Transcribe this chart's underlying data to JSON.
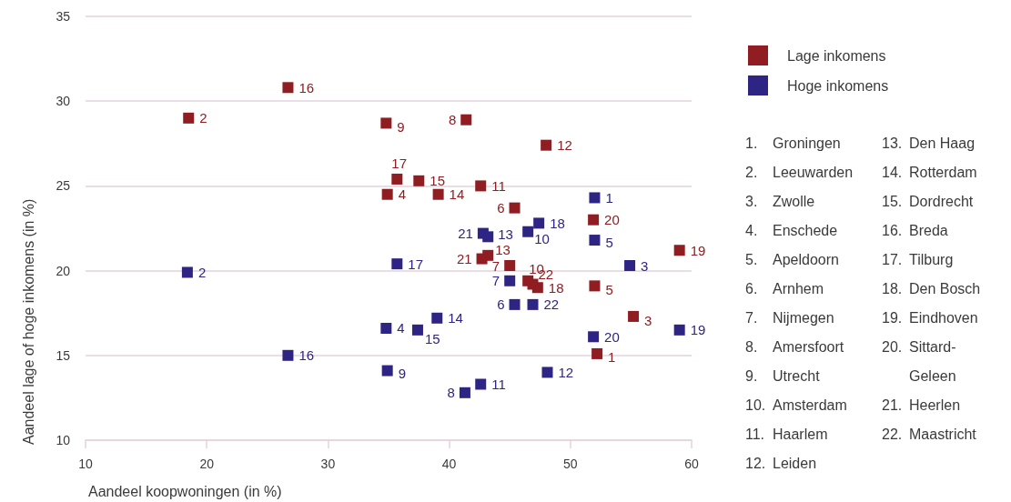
{
  "chart_data": {
    "type": "scatter",
    "xlabel": "Aandeel koopwoningen (in %)",
    "ylabel": "Aandeel lage of hoge inkomens (in %)",
    "xlim": [
      10,
      60
    ],
    "xticks": [
      10,
      20,
      30,
      40,
      50,
      60
    ],
    "ylim": [
      10,
      35
    ],
    "yticks": [
      10,
      15,
      20,
      25,
      30,
      35
    ],
    "grid": "y",
    "legend": "top right",
    "marker": "square",
    "series": [
      {
        "name": "Lage inkomens",
        "color": "#8f1d21",
        "x": [
          52.2,
          18.5,
          55.2,
          34.9,
          52.0,
          45.4,
          45.0,
          41.4,
          34.8,
          46.5,
          42.6,
          48.0,
          43.2,
          39.1,
          37.5,
          26.7,
          35.7,
          47.3,
          59.0,
          51.9,
          42.7,
          46.9
        ],
        "values": [
          15.1,
          29.0,
          17.3,
          24.5,
          19.1,
          23.7,
          20.3,
          28.9,
          28.7,
          19.4,
          25.0,
          27.4,
          20.9,
          24.5,
          25.3,
          30.8,
          25.4,
          19.0,
          21.2,
          23.0,
          20.7,
          19.2
        ]
      },
      {
        "name": "Hoge inkomens",
        "color": "#2e2484",
        "x": [
          52.0,
          18.4,
          54.9,
          34.8,
          52.0,
          45.4,
          45.0,
          41.3,
          34.9,
          46.5,
          42.6,
          48.1,
          43.2,
          39.0,
          37.4,
          26.7,
          35.7,
          47.4,
          59.0,
          51.9,
          42.8,
          46.9
        ],
        "values": [
          24.3,
          19.9,
          20.3,
          16.6,
          21.8,
          18.0,
          19.4,
          12.8,
          14.1,
          22.3,
          13.3,
          14.0,
          22.0,
          17.2,
          16.5,
          15.0,
          20.4,
          22.8,
          16.5,
          16.1,
          22.2,
          18.0
        ]
      }
    ],
    "annotations": [
      {
        "text": "1",
        "x": 52.2,
        "y": 15.1
      },
      {
        "text": "2",
        "x": 18.5,
        "y": 29.0
      },
      {
        "text": "3",
        "x": 55.2,
        "y": 17.3
      },
      {
        "text": "4",
        "x": 34.9,
        "y": 24.5
      },
      {
        "text": "5",
        "x": 52.0,
        "y": 19.1
      },
      {
        "text": "6",
        "x": 45.4,
        "y": 23.7
      },
      {
        "text": "7",
        "x": 45.0,
        "y": 20.3
      },
      {
        "text": "8",
        "x": 41.4,
        "y": 28.9
      },
      {
        "text": "9",
        "x": 34.8,
        "y": 28.7
      },
      {
        "text": "10",
        "x": 46.5,
        "y": 19.4
      },
      {
        "text": "11",
        "x": 42.6,
        "y": 25.0
      },
      {
        "text": "12",
        "x": 48.0,
        "y": 27.4
      },
      {
        "text": "13",
        "x": 43.2,
        "y": 20.9
      },
      {
        "text": "14",
        "x": 39.1,
        "y": 24.5
      },
      {
        "text": "15",
        "x": 37.5,
        "y": 25.3
      },
      {
        "text": "16",
        "x": 26.7,
        "y": 30.8
      },
      {
        "text": "17",
        "x": 35.7,
        "y": 25.4
      },
      {
        "text": "18",
        "x": 47.3,
        "y": 19.0
      },
      {
        "text": "19",
        "x": 59.0,
        "y": 21.2
      },
      {
        "text": "20",
        "x": 51.9,
        "y": 23.0
      },
      {
        "text": "21",
        "x": 42.7,
        "y": 20.7
      },
      {
        "text": "22",
        "x": 46.9,
        "y": 19.2
      },
      {
        "text": "1",
        "x": 52.0,
        "y": 24.3
      },
      {
        "text": "2",
        "x": 18.4,
        "y": 19.9
      },
      {
        "text": "3",
        "x": 54.9,
        "y": 20.3
      },
      {
        "text": "4",
        "x": 34.8,
        "y": 16.6
      },
      {
        "text": "5",
        "x": 52.0,
        "y": 21.8
      },
      {
        "text": "6",
        "x": 45.4,
        "y": 18.0
      },
      {
        "text": "7",
        "x": 45.0,
        "y": 19.4
      },
      {
        "text": "8",
        "x": 41.3,
        "y": 12.8
      },
      {
        "text": "9",
        "x": 34.9,
        "y": 14.1
      },
      {
        "text": "10",
        "x": 46.5,
        "y": 22.3
      },
      {
        "text": "11",
        "x": 42.6,
        "y": 13.3
      },
      {
        "text": "12",
        "x": 48.1,
        "y": 14.0
      },
      {
        "text": "13",
        "x": 43.2,
        "y": 22.0
      },
      {
        "text": "14",
        "x": 39.0,
        "y": 17.2
      },
      {
        "text": "15",
        "x": 37.4,
        "y": 16.5
      },
      {
        "text": "16",
        "x": 26.7,
        "y": 15.0
      },
      {
        "text": "17",
        "x": 35.7,
        "y": 20.4
      },
      {
        "text": "18",
        "x": 47.4,
        "y": 22.8
      },
      {
        "text": "19",
        "x": 59.0,
        "y": 16.5
      },
      {
        "text": "20",
        "x": 51.9,
        "y": 16.1
      },
      {
        "text": "21",
        "x": 42.8,
        "y": 22.2
      },
      {
        "text": "22",
        "x": 46.9,
        "y": 18.0
      },
      "1. Groningen",
      "2. Leeuwarden",
      "3. Zwolle",
      "4. Enschede",
      "5. Apeldoorn",
      "6. Arnhem",
      "7. Nijmegen",
      "8. Amersfoort",
      "9. Utrecht",
      "10. Amsterdam",
      "11. Haarlem",
      "12. Leiden",
      "13. Den Haag",
      "14. Rotterdam",
      "15. Dordrecht",
      "16. Breda",
      "17. Tilburg",
      "18. Den Bosch",
      "19. Eindhoven",
      "20. Sittard-Geleen",
      "21. Heerlen",
      "22. Maastricht"
    ]
  }
}
